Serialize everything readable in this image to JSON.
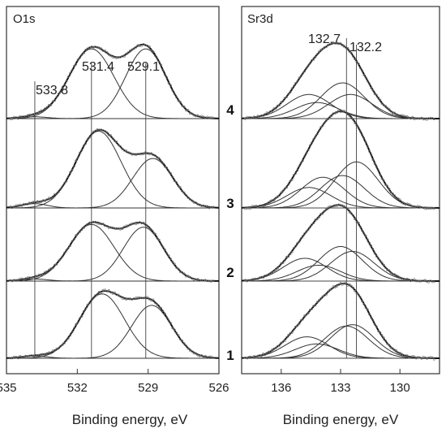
{
  "chart_data": [
    {
      "type": "line",
      "panel_label": "O1s",
      "xlabel": "Binding energy, eV",
      "xlim": [
        535,
        526
      ],
      "xticks": [
        "535",
        "532",
        "529",
        "526"
      ],
      "reference_lines": [
        {
          "position": 533.8,
          "label": "533.8"
        },
        {
          "position": 531.4,
          "label": "531.4"
        },
        {
          "position": 529.1,
          "label": "529.1"
        }
      ],
      "spectra": [
        {
          "index": "4",
          "components": [
            {
              "center": 533.8,
              "height": 0.02,
              "width": 0.55
            },
            {
              "center": 531.4,
              "height": 0.78,
              "width": 0.95
            },
            {
              "center": 529.1,
              "height": 0.78,
              "width": 0.85
            }
          ]
        },
        {
          "index": "3",
          "components": [
            {
              "center": 533.8,
              "height": 0.05,
              "width": 0.55
            },
            {
              "center": 531.1,
              "height": 0.9,
              "width": 0.95
            },
            {
              "center": 528.8,
              "height": 0.58,
              "width": 0.85
            }
          ]
        },
        {
          "index": "2",
          "components": [
            {
              "center": 533.8,
              "height": 0.03,
              "width": 0.55
            },
            {
              "center": 531.4,
              "height": 0.82,
              "width": 0.95
            },
            {
              "center": 529.2,
              "height": 0.78,
              "width": 0.85
            }
          ]
        },
        {
          "index": "1",
          "components": [
            {
              "center": 533.8,
              "height": 0.03,
              "width": 0.55
            },
            {
              "center": 530.95,
              "height": 0.9,
              "width": 0.95
            },
            {
              "center": 528.85,
              "height": 0.74,
              "width": 0.85
            }
          ]
        }
      ]
    },
    {
      "type": "line",
      "panel_label": "Sr3d",
      "xlabel": "Binding energy, eV",
      "xlim": [
        138,
        128
      ],
      "xticks": [
        "136",
        "133",
        "130"
      ],
      "reference_lines": [
        {
          "position": 132.7,
          "label": "132.7"
        },
        {
          "position": 132.2,
          "label": "132.2"
        }
      ],
      "spectra": [
        {
          "index": "4",
          "components": [
            {
              "center": 134.6,
              "height": 0.27,
              "width": 1.1
            },
            {
              "center": 132.9,
              "height": 0.4,
              "width": 1.1
            },
            {
              "center": 134.2,
              "height": 0.18,
              "width": 1.1
            },
            {
              "center": 132.5,
              "height": 0.27,
              "width": 1.1
            }
          ]
        },
        {
          "index": "3",
          "components": [
            {
              "center": 134.6,
              "height": 0.24,
              "width": 1.1
            },
            {
              "center": 133.9,
              "height": 0.36,
              "width": 1.1
            },
            {
              "center": 132.9,
              "height": 0.38,
              "width": 1.1
            },
            {
              "center": 132.2,
              "height": 0.54,
              "width": 1.1
            }
          ]
        },
        {
          "index": "2",
          "components": [
            {
              "center": 134.8,
              "height": 0.33,
              "width": 1.1
            },
            {
              "center": 134.1,
              "height": 0.23,
              "width": 1.1
            },
            {
              "center": 133.0,
              "height": 0.5,
              "width": 1.1
            },
            {
              "center": 132.4,
              "height": 0.43,
              "width": 1.1
            }
          ]
        },
        {
          "index": "1",
          "components": [
            {
              "center": 134.7,
              "height": 0.3,
              "width": 1.1
            },
            {
              "center": 134.2,
              "height": 0.2,
              "width": 1.1
            },
            {
              "center": 132.7,
              "height": 0.45,
              "width": 1.1
            },
            {
              "center": 132.4,
              "height": 0.47,
              "width": 1.1
            }
          ]
        }
      ]
    }
  ]
}
